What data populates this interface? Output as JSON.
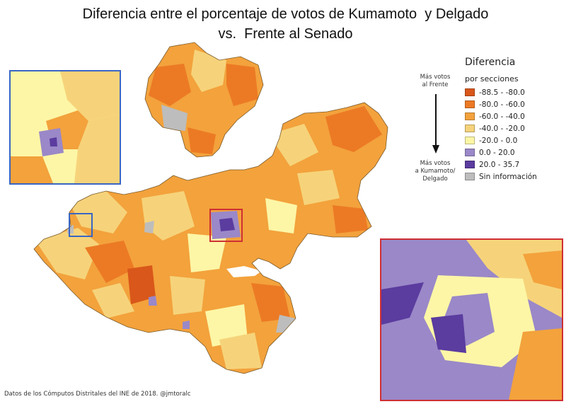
{
  "title": {
    "line1": "Diferencia entre el porcentaje de votos de Kumamoto  y Delgado",
    "line2": "vs.  Frente al Senado"
  },
  "legend": {
    "title": "Diferencia",
    "subtitle": "por secciones",
    "items": [
      {
        "label": "-88.5 - -80.0",
        "color": "#d9571a"
      },
      {
        "label": "-80.0 - -60.0",
        "color": "#ec7a25"
      },
      {
        "label": "-60.0 - -40.0",
        "color": "#f3a23c"
      },
      {
        "label": "-40.0 - -20.0",
        "color": "#f6d37a"
      },
      {
        "label": "-20.0 - 0.0",
        "color": "#fdf6a6"
      },
      {
        "label": "0.0 - 20.0",
        "color": "#9a88c8"
      },
      {
        "label": "20.0 - 35.7",
        "color": "#5b3c9f"
      },
      {
        "label": "Sin información",
        "color": "#bdbdbd"
      }
    ]
  },
  "annotations": {
    "top_line1": "Más votos",
    "top_line2": "al Frente",
    "bottom_line1": "Más votos",
    "bottom_line2": "a Kumamoto/",
    "bottom_line3": "Delgado"
  },
  "source": "Datos de los Cómputos Distritales del INE de 2018. @jmtoralc",
  "colors": {
    "inset_coast_border": "#3a66c4",
    "inset_gdl_border": "#cf2f33"
  }
}
